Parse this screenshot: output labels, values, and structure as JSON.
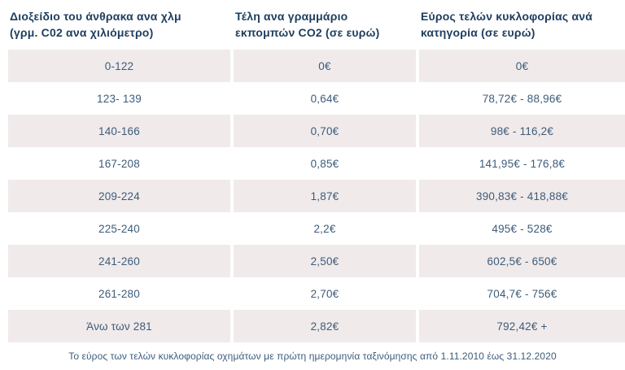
{
  "table": {
    "columns": [
      {
        "header": "Διοξείδιο του άνθρακα ανα χλμ (γρμ. C02 ανα χιλιόμετρο)"
      },
      {
        "header": "Τέλη ανα γραμμάριο εκπομπών CO2 (σε ευρώ)"
      },
      {
        "header": "Εύρος τελών κυκλοφορίας ανά κατηγορία (σε ευρώ)"
      }
    ],
    "rows": [
      [
        "0-122",
        "0€",
        "0€"
      ],
      [
        "123- 139",
        "0,64€",
        "78,72€ - 88,96€"
      ],
      [
        "140-166",
        "0,70€",
        "98€ - 116,2€"
      ],
      [
        "167-208",
        "0,85€",
        "141,95€ - 176,8€"
      ],
      [
        "209-224",
        "1,87€",
        "390,83€ - 418,88€"
      ],
      [
        "225-240",
        "2,2€",
        "495€ - 528€"
      ],
      [
        "241-260",
        "2,50€",
        "602,5€ - 650€"
      ],
      [
        "261-280",
        "2,70€",
        "704,7€ - 756€"
      ],
      [
        "Άνω των 281",
        "2,82€",
        "792,42€ +"
      ]
    ],
    "footnote": "Το εύρος των τελών κυκλοφορίας οχημάτων με πρώτη ημερομηνία ταξινόμησης από 1.11.2010 έως 31.12.2020"
  },
  "colors": {
    "page_bg": "#ffffff",
    "stripe_bg": "#f0eaea",
    "header_text": "#1e3d5f",
    "cell_text": "#3d5c7a"
  }
}
